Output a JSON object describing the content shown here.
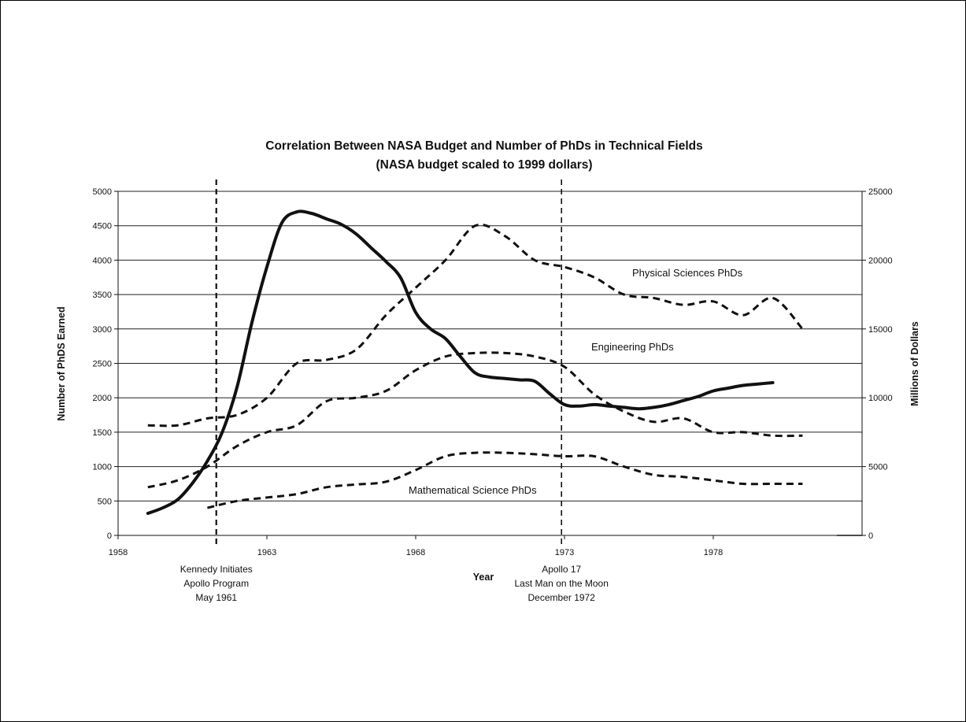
{
  "chart_data": {
    "type": "line",
    "title": "Correlation Between NASA Budget and Number of PhDs in Technical Fields",
    "subtitle": "(NASA budget scaled to 1999 dollars)",
    "xlabel": "Year",
    "ylabel_left": "Number of PhDS Earned",
    "ylabel_right": "Millions of Dollars",
    "xlim": [
      1958,
      1983
    ],
    "ylim_left": [
      0,
      5000
    ],
    "ylim_right": [
      0,
      25000
    ],
    "x_ticks": [
      "1958",
      "1963",
      "1968",
      "1973",
      "1978"
    ],
    "y_ticks_left": [
      "0",
      "500",
      "1000",
      "1500",
      "2000",
      "2500",
      "3000",
      "3500",
      "4000",
      "4500",
      "5000"
    ],
    "y_ticks_right": [
      "0",
      "5000",
      "10000",
      "15000",
      "20000",
      "25000"
    ],
    "grid": true,
    "series": [
      {
        "name": "NASA Budget",
        "axis": "right",
        "style": "solid-thick",
        "x": [
          1959,
          1959.5,
          1960,
          1960.5,
          1961,
          1961.5,
          1962,
          1962.5,
          1963,
          1963.5,
          1964,
          1964.5,
          1965,
          1965.5,
          1966,
          1966.5,
          1967,
          1967.5,
          1968,
          1968.5,
          1969,
          1969.5,
          1970,
          1970.5,
          1971,
          1971.5,
          1972,
          1972.5,
          1973,
          1973.5,
          1974,
          1974.5,
          1975,
          1975.5,
          1976,
          1976.5,
          1977,
          1977.5,
          1978,
          1978.5,
          1979,
          1979.5,
          1980
        ],
        "values": [
          1600,
          2000,
          2600,
          3800,
          5400,
          7500,
          10800,
          15500,
          19500,
          22700,
          23500,
          23400,
          23000,
          22600,
          21900,
          20900,
          19900,
          18700,
          16200,
          15000,
          14300,
          13000,
          11800,
          11500,
          11400,
          11300,
          11200,
          10300,
          9500,
          9400,
          9500,
          9400,
          9300,
          9200,
          9300,
          9500,
          9800,
          10100,
          10500,
          10700,
          10900,
          11000,
          11100
        ]
      },
      {
        "name": "Physical Sciences PhDs",
        "axis": "left",
        "style": "dashed",
        "x": [
          1959,
          1960,
          1961,
          1962,
          1963,
          1964,
          1965,
          1966,
          1967,
          1968,
          1969,
          1970,
          1971,
          1972,
          1973,
          1974,
          1975,
          1976,
          1977,
          1978,
          1979,
          1980,
          1981
        ],
        "values": [
          1600,
          1600,
          1700,
          1750,
          2000,
          2500,
          2550,
          2700,
          3200,
          3600,
          4000,
          4500,
          4350,
          4000,
          3900,
          3750,
          3500,
          3450,
          3350,
          3400,
          3200,
          3450,
          3000
        ]
      },
      {
        "name": "Engineering PhDs",
        "axis": "left",
        "style": "dashed",
        "x": [
          1959,
          1960,
          1961,
          1962,
          1963,
          1964,
          1965,
          1966,
          1967,
          1968,
          1969,
          1970,
          1971,
          1972,
          1973,
          1974,
          1975,
          1976,
          1977,
          1978,
          1979,
          1980,
          1981
        ],
        "values": [
          700,
          800,
          1000,
          1300,
          1500,
          1600,
          1950,
          2000,
          2100,
          2400,
          2600,
          2650,
          2650,
          2600,
          2450,
          2050,
          1800,
          1650,
          1700,
          1500,
          1500,
          1450,
          1450
        ]
      },
      {
        "name": "Mathematical Science PhDs",
        "axis": "left",
        "style": "dashed",
        "x": [
          1961,
          1962,
          1963,
          1964,
          1965,
          1966,
          1967,
          1968,
          1969,
          1970,
          1971,
          1972,
          1973,
          1974,
          1975,
          1976,
          1977,
          1978,
          1979,
          1980,
          1981
        ],
        "values": [
          400,
          500,
          550,
          600,
          700,
          740,
          780,
          950,
          1150,
          1200,
          1200,
          1180,
          1150,
          1150,
          1000,
          880,
          850,
          800,
          750,
          750,
          750
        ]
      }
    ],
    "series_labels": {
      "physical": "Physical Sciences PhDs",
      "engineering": "Engineering PhDs",
      "math": "Mathematical Science PhDs"
    },
    "events": [
      {
        "year": 1961.3,
        "lines": [
          "Kennedy Initiates",
          "Apollo Program",
          "May 1961"
        ]
      },
      {
        "year": 1972.9,
        "lines": [
          "Apollo 17",
          "Last Man on the Moon",
          "December 1972"
        ]
      }
    ]
  }
}
